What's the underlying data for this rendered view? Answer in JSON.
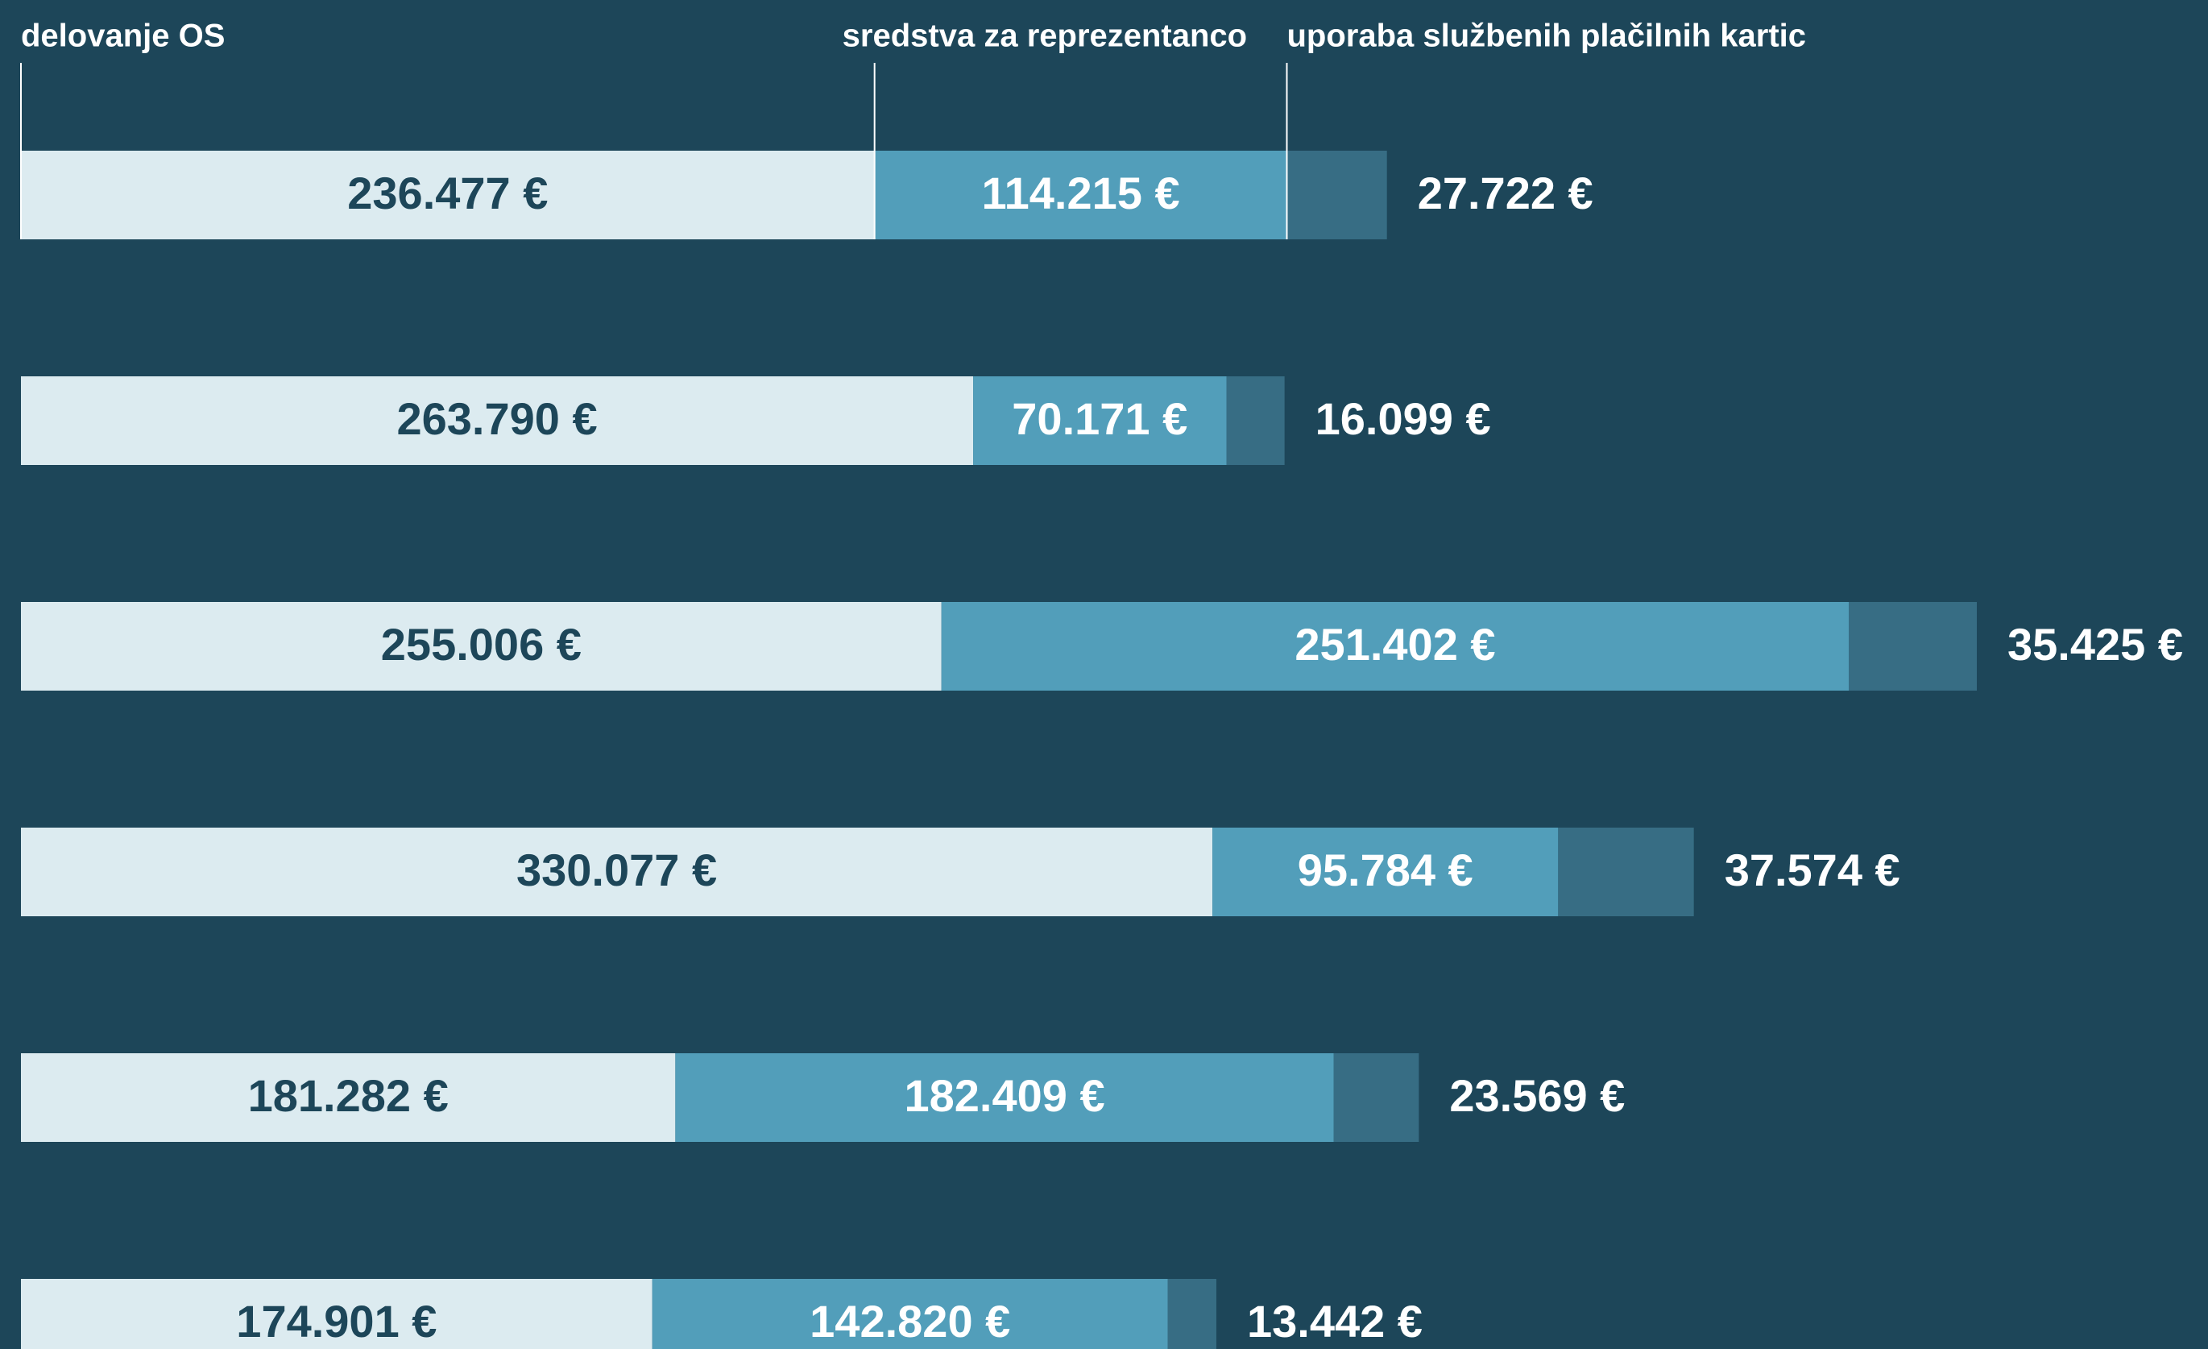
{
  "chart_data": {
    "type": "bar",
    "orientation": "horizontal",
    "stacked": true,
    "series": [
      {
        "name": "delovanje OS",
        "color": "#dcebf0",
        "label_color": "#1d4659",
        "values": [
          236477,
          263790,
          255006,
          330077,
          181282,
          174901
        ],
        "value_labels": [
          "236.477 €",
          "263.790 €",
          "255.006 €",
          "330.077 €",
          "181.282 €",
          "174.901 €"
        ]
      },
      {
        "name": "sredstva za reprezentanco",
        "color": "#529eba",
        "label_color": "#ffffff",
        "values": [
          114215,
          70171,
          251402,
          95784,
          182409,
          142820
        ],
        "value_labels": [
          "114.215 €",
          "70.171 €",
          "251.402 €",
          "95.784  €",
          "182.409  €",
          "142.820 €"
        ]
      },
      {
        "name": "uporaba službenih plačilnih kartic",
        "color": "#376d84",
        "label_color": "#ffffff",
        "values": [
          27722,
          16099,
          35425,
          37574,
          23569,
          13442
        ],
        "value_labels": [
          "27.722 €",
          "16.099 €",
          "35.425 €",
          "37.574 €",
          "23.569 €",
          "13.442 €"
        ]
      }
    ]
  }
}
